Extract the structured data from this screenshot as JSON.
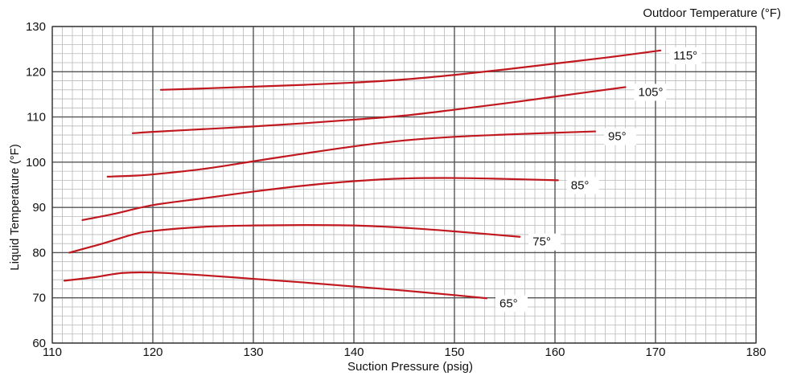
{
  "chart_data": {
    "type": "line",
    "title": "",
    "legend_title": "Outdoor Temperature (°F)",
    "xlabel": "Suction Pressure (psig)",
    "ylabel": "Liquid  Temperature  (°F)",
    "xlim": [
      110,
      180
    ],
    "ylim": [
      60,
      130
    ],
    "x_ticks": [
      110,
      120,
      130,
      140,
      150,
      160,
      170,
      180
    ],
    "y_ticks": [
      60,
      70,
      80,
      90,
      100,
      110,
      120,
      130
    ],
    "x_tick_labels": [
      "110",
      "120",
      "130",
      "140",
      "150",
      "160",
      "170",
      "180"
    ],
    "y_tick_labels": [
      "60",
      "70",
      "80",
      "90",
      "100",
      "110",
      "120",
      "130"
    ],
    "x_minor_step": 1,
    "y_minor_step": 2,
    "grid": true,
    "line_color": "#c0181e",
    "series": [
      {
        "name": "65°",
        "x": [
          111.2,
          114,
          117,
          120,
          125,
          130,
          135,
          140,
          145,
          150,
          153.2
        ],
        "y": [
          73.8,
          74.5,
          75.5,
          75.6,
          75.0,
          74.2,
          73.4,
          72.5,
          71.6,
          70.6,
          69.9
        ]
      },
      {
        "name": "75°",
        "x": [
          111.7,
          115,
          118,
          120,
          125,
          130,
          135,
          140,
          145,
          150,
          156.5
        ],
        "y": [
          80.0,
          82.0,
          84.0,
          84.8,
          85.7,
          86.0,
          86.1,
          86.0,
          85.5,
          84.7,
          83.5
        ]
      },
      {
        "name": "85°",
        "x": [
          113.0,
          116,
          120,
          125,
          130,
          135,
          140,
          145,
          150,
          155,
          160.3
        ],
        "y": [
          87.2,
          88.5,
          90.5,
          92.0,
          93.5,
          94.8,
          95.8,
          96.4,
          96.5,
          96.3,
          96.0
        ]
      },
      {
        "name": "95°",
        "x": [
          115.5,
          118,
          120,
          125,
          130,
          135,
          140,
          145,
          150,
          155,
          160,
          164.0
        ],
        "y": [
          96.8,
          97.0,
          97.3,
          98.5,
          100.2,
          101.9,
          103.5,
          104.8,
          105.6,
          106.1,
          106.5,
          106.8
        ]
      },
      {
        "name": "105°",
        "x": [
          118.0,
          120,
          125,
          130,
          135,
          140,
          145,
          150,
          155,
          160,
          167.0
        ],
        "y": [
          106.4,
          106.7,
          107.3,
          107.9,
          108.6,
          109.4,
          110.3,
          111.6,
          113.0,
          114.5,
          116.6
        ]
      },
      {
        "name": "115°",
        "x": [
          120.8,
          125,
          130,
          135,
          140,
          145,
          150,
          155,
          160,
          165,
          170.5
        ],
        "y": [
          116.0,
          116.3,
          116.7,
          117.1,
          117.6,
          118.3,
          119.3,
          120.5,
          121.8,
          123.1,
          124.7
        ]
      }
    ]
  }
}
